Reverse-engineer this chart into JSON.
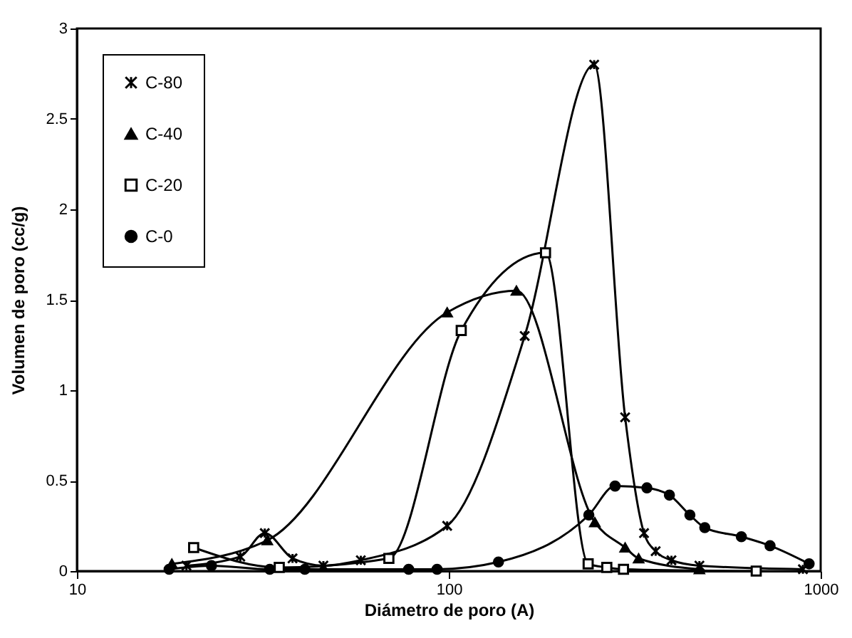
{
  "chart_data": {
    "type": "line",
    "xlabel": "Diámetro de poro (A)",
    "ylabel": "Volumen de poro (cc/g)",
    "log": "x",
    "xlim": [
      10,
      1000
    ],
    "xticks": [
      10,
      100,
      1000
    ],
    "ylim": [
      0,
      3
    ],
    "yticks": [
      0,
      0.5,
      1,
      1.5,
      2,
      2.5,
      3
    ],
    "grid": false,
    "legend": "top left",
    "series": [
      {
        "name": "C-80",
        "color": "#000000",
        "marker": "cross",
        "x": [
          19.7,
          27.5,
          32,
          38,
          46,
          58,
          99,
          160,
          246,
          298,
          335,
          360,
          397,
          472,
          896
        ],
        "values": [
          0.03,
          0.08,
          0.21,
          0.07,
          0.03,
          0.06,
          0.25,
          1.3,
          2.8,
          0.85,
          0.21,
          0.11,
          0.06,
          0.03,
          0.01
        ]
      },
      {
        "name": "C-40",
        "color": "#000000",
        "marker": "triangle",
        "x": [
          18,
          32.5,
          99,
          152,
          247,
          298,
          324,
          472
        ],
        "values": [
          0.04,
          0.17,
          1.43,
          1.55,
          0.27,
          0.13,
          0.07,
          0.01
        ]
      },
      {
        "name": "C-20",
        "color": "#000000",
        "marker": "square",
        "x": [
          20.6,
          35,
          69,
          108,
          182,
          237,
          266,
          295,
          671
        ],
        "values": [
          0.13,
          0.02,
          0.07,
          1.33,
          1.76,
          0.04,
          0.02,
          0.01,
          0
        ]
      },
      {
        "name": "C-0",
        "color": "#000000",
        "marker": "circle",
        "x": [
          17.7,
          23,
          33,
          41,
          78,
          93,
          136,
          238,
          280,
          341,
          392,
          445,
          488,
          612,
          731,
          931
        ],
        "values": [
          0.01,
          0.03,
          0.01,
          0.01,
          0.01,
          0.01,
          0.05,
          0.31,
          0.47,
          0.46,
          0.42,
          0.31,
          0.24,
          0.19,
          0.14,
          0.04
        ]
      }
    ]
  }
}
